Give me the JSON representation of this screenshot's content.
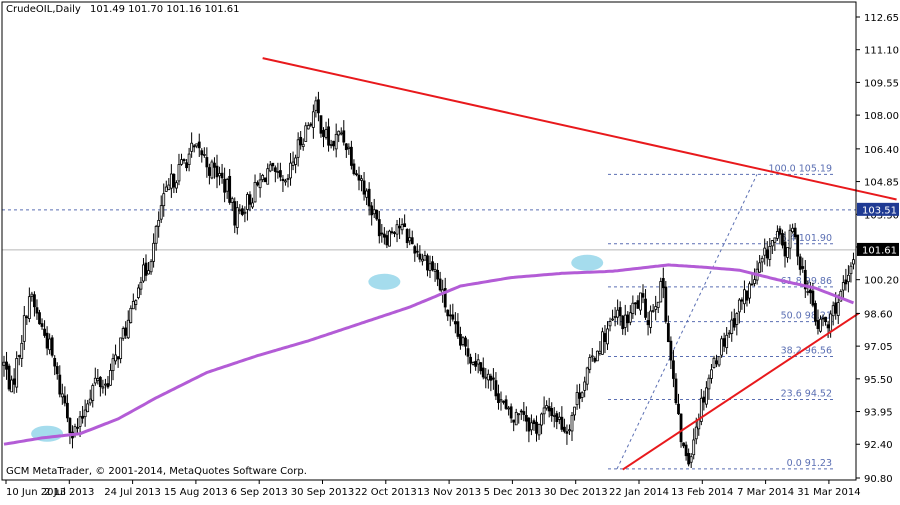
{
  "header": {
    "symbol": "CrudeOIL,Daily",
    "ohlc": "101.49 101.70 101.16 101.61"
  },
  "footer": {
    "copyright": "GCM MetaTrader, © 2001-2014, MetaQuotes Software Corp."
  },
  "colors": {
    "background": "#ffffff",
    "candle": "#000000",
    "trendline": "#e8191c",
    "moving_average": "#b35cd6",
    "fibonacci": "#5b6fb3",
    "highlight": "#8fd3e8",
    "price_tag_bg": "#1f3a93",
    "current_tag_bg": "#000000"
  },
  "chart_data": {
    "type": "candlestick",
    "x_ticks": [
      "10 Jun 2013",
      "2 Jul 2013",
      "24 Jul 2013",
      "15 Aug 2013",
      "6 Sep 2013",
      "30 Sep 2013",
      "22 Oct 2013",
      "13 Nov 2013",
      "5 Dec 2013",
      "30 Dec 2013",
      "22 Jan 2014",
      "13 Feb 2014",
      "7 Mar 2014",
      "31 Mar 2014"
    ],
    "y_ticks": [
      "112.65",
      "111.10",
      "109.55",
      "108.00",
      "106.40",
      "104.85",
      "103.30",
      "101.75",
      "100.20",
      "98.60",
      "97.05",
      "95.50",
      "93.95",
      "92.40",
      "90.80"
    ],
    "ylim": [
      90.8,
      112.65
    ],
    "horizontal_line_level": 103.51,
    "horizontal_line_label": "103.51",
    "current_price": 101.61,
    "current_price_label": "101.61",
    "fibonacci_levels": [
      {
        "label": "100.0 105.19",
        "value": 105.19
      },
      {
        "label": "76.4 101.90",
        "value": 101.9
      },
      {
        "label": "61.8 99.86",
        "value": 99.86
      },
      {
        "label": "50.0 98.21",
        "value": 98.21
      },
      {
        "label": "38.2 96.56",
        "value": 96.56
      },
      {
        "label": "23.6 94.52",
        "value": 94.52
      },
      {
        "label": "0.0 91.23",
        "value": 91.23
      }
    ],
    "close_anchors": [
      [
        0,
        96.2
      ],
      [
        3,
        95.0
      ],
      [
        7,
        97.5
      ],
      [
        10,
        99.5
      ],
      [
        14,
        98.2
      ],
      [
        18,
        97.0
      ],
      [
        22,
        95.0
      ],
      [
        24,
        94.4
      ],
      [
        27,
        92.9
      ],
      [
        30,
        93.3
      ],
      [
        33,
        94.6
      ],
      [
        36,
        95.4
      ],
      [
        40,
        95.2
      ],
      [
        44,
        96.4
      ],
      [
        47,
        97.6
      ],
      [
        50,
        98.4
      ],
      [
        53,
        100.2
      ],
      [
        56,
        100.6
      ],
      [
        59,
        101.8
      ],
      [
        62,
        103.6
      ],
      [
        66,
        104.8
      ],
      [
        70,
        105.6
      ],
      [
        74,
        106.3
      ],
      [
        78,
        106.2
      ],
      [
        81,
        105.5
      ],
      [
        84,
        105.3
      ],
      [
        88,
        104.5
      ],
      [
        91,
        103.2
      ],
      [
        94,
        103.6
      ],
      [
        98,
        104.2
      ],
      [
        101,
        104.8
      ],
      [
        104,
        105.4
      ],
      [
        108,
        104.9
      ],
      [
        111,
        104.5
      ],
      [
        114,
        105.8
      ],
      [
        117,
        106.8
      ],
      [
        120,
        107.6
      ],
      [
        123,
        108.3
      ],
      [
        126,
        107.2
      ],
      [
        129,
        106.5
      ],
      [
        133,
        107.2
      ],
      [
        136,
        106.4
      ],
      [
        139,
        105.3
      ],
      [
        142,
        104.6
      ],
      [
        145,
        103.5
      ],
      [
        148,
        102.7
      ],
      [
        151,
        102.3
      ],
      [
        155,
        102.9
      ],
      [
        158,
        102.4
      ],
      [
        161,
        101.9
      ],
      [
        164,
        101.4
      ],
      [
        167,
        101.1
      ],
      [
        170,
        100.6
      ],
      [
        173,
        99.4
      ],
      [
        176,
        98.2
      ],
      [
        180,
        97.2
      ],
      [
        184,
        96.6
      ],
      [
        188,
        96.2
      ],
      [
        192,
        95.4
      ],
      [
        195,
        94.8
      ],
      [
        198,
        93.9
      ],
      [
        201,
        93.5
      ],
      [
        204,
        94.2
      ],
      [
        207,
        93.4
      ],
      [
        210,
        93.2
      ],
      [
        213,
        93.9
      ],
      [
        216,
        94.0
      ],
      [
        219,
        93.5
      ],
      [
        222,
        93.1
      ],
      [
        226,
        94.6
      ],
      [
        229,
        95.5
      ],
      [
        232,
        96.4
      ],
      [
        235,
        97.2
      ],
      [
        238,
        97.8
      ],
      [
        242,
        98.5
      ],
      [
        245,
        98.1
      ],
      [
        248,
        98.8
      ],
      [
        251,
        99.2
      ],
      [
        254,
        98.4
      ],
      [
        257,
        99.3
      ],
      [
        260,
        99.9
      ],
      [
        262,
        97.4
      ],
      [
        264,
        95.3
      ],
      [
        266,
        93.4
      ],
      [
        268,
        92.1
      ],
      [
        270,
        91.7
      ],
      [
        272,
        92.8
      ],
      [
        274,
        93.9
      ],
      [
        276,
        94.8
      ],
      [
        278,
        95.6
      ],
      [
        281,
        96.6
      ],
      [
        284,
        97.4
      ],
      [
        287,
        98.1
      ],
      [
        290,
        99.0
      ],
      [
        293,
        99.6
      ],
      [
        296,
        100.2
      ],
      [
        299,
        101.0
      ],
      [
        302,
        101.8
      ],
      [
        305,
        102.2
      ],
      [
        308,
        101.5
      ],
      [
        311,
        102.5
      ],
      [
        313,
        101.6
      ],
      [
        315,
        100.6
      ],
      [
        317,
        99.6
      ],
      [
        319,
        98.9
      ],
      [
        321,
        97.9
      ],
      [
        323,
        98.3
      ],
      [
        325,
        97.9
      ],
      [
        327,
        98.8
      ],
      [
        330,
        99.4
      ],
      [
        333,
        100.1
      ],
      [
        335,
        101.3
      ]
    ],
    "moving_average_anchors": [
      [
        0,
        92.4
      ],
      [
        15,
        92.7
      ],
      [
        30,
        92.9
      ],
      [
        45,
        93.6
      ],
      [
        60,
        94.6
      ],
      [
        80,
        95.8
      ],
      [
        100,
        96.6
      ],
      [
        120,
        97.3
      ],
      [
        140,
        98.1
      ],
      [
        160,
        98.9
      ],
      [
        180,
        99.9
      ],
      [
        200,
        100.3
      ],
      [
        220,
        100.5
      ],
      [
        240,
        100.6
      ],
      [
        262,
        100.9
      ],
      [
        275,
        100.8
      ],
      [
        290,
        100.65
      ],
      [
        305,
        100.2
      ],
      [
        320,
        99.8
      ],
      [
        335,
        99.1
      ]
    ],
    "trendlines": [
      {
        "from": [
          102,
          110.7
        ],
        "to": [
          352,
          104.0
        ]
      },
      {
        "from": [
          244,
          91.2
        ],
        "to": [
          337,
          98.6
        ]
      }
    ],
    "highlights": [
      {
        "x": 17,
        "y": 92.9
      },
      {
        "x": 150,
        "y": 100.1
      },
      {
        "x": 230,
        "y": 101.0
      }
    ]
  }
}
